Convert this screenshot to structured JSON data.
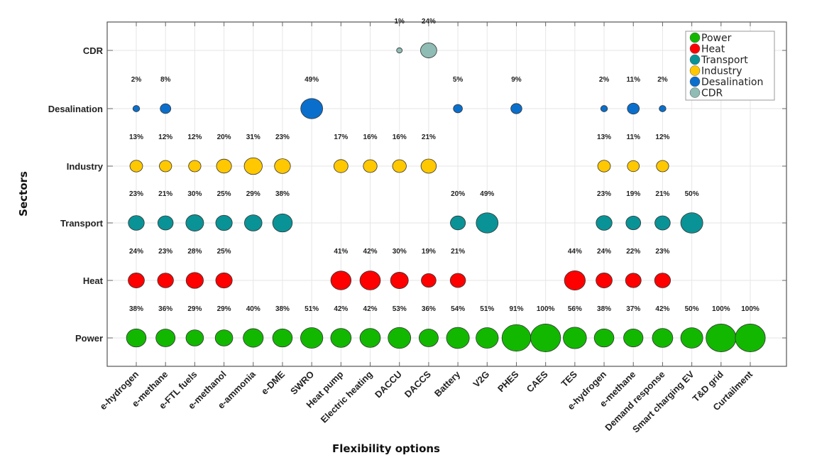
{
  "chart_data": {
    "type": "scatter",
    "subtype": "bubble",
    "title": "",
    "xlabel": "Flexibility options",
    "ylabel": "Sectors",
    "grid": true,
    "legend_position": "top-right",
    "categories": [
      "e-hydrogen",
      "e-methane",
      "e-FTL fuels",
      "e-methanol",
      "e-ammonia",
      "e-DME",
      "SWRO",
      "Heat pump",
      "Electric heating",
      "DACCU",
      "DACCS",
      "Battery",
      "V2G",
      "PHES",
      "CAES",
      "TES",
      "e-hydrogen",
      "e-methane",
      "Demand response",
      "Smart charging EV",
      "T&D grid",
      "Curtailment"
    ],
    "sectors": [
      "Power",
      "Heat",
      "Transport",
      "Industry",
      "Desalination",
      "CDR"
    ],
    "series": [
      {
        "name": "Power",
        "color": "#12b800",
        "values": [
          38,
          36,
          29,
          29,
          40,
          38,
          51,
          42,
          42,
          53,
          36,
          54,
          51,
          91,
          100,
          56,
          38,
          37,
          42,
          50,
          100,
          100
        ]
      },
      {
        "name": "Heat",
        "color": "#ff0000",
        "values": [
          24,
          23,
          28,
          25,
          null,
          null,
          null,
          41,
          42,
          30,
          19,
          21,
          null,
          null,
          null,
          44,
          24,
          22,
          23,
          null,
          null,
          null
        ]
      },
      {
        "name": "Transport",
        "color": "#0a9396",
        "values": [
          23,
          21,
          30,
          25,
          29,
          38,
          null,
          null,
          null,
          null,
          null,
          20,
          49,
          null,
          null,
          null,
          23,
          19,
          21,
          50,
          null,
          null
        ]
      },
      {
        "name": "Industry",
        "color": "#ffc800",
        "values": [
          13,
          12,
          12,
          20,
          31,
          23,
          null,
          17,
          16,
          16,
          21,
          null,
          null,
          null,
          null,
          null,
          13,
          11,
          12,
          null,
          null,
          null
        ]
      },
      {
        "name": "Desalination",
        "color": "#0a6fcc",
        "values": [
          2,
          8,
          null,
          null,
          null,
          null,
          49,
          null,
          null,
          null,
          null,
          5,
          null,
          9,
          null,
          null,
          2,
          11,
          2,
          null,
          null,
          null
        ]
      },
      {
        "name": "CDR",
        "color": "#8fbcb5",
        "values": [
          null,
          null,
          null,
          null,
          null,
          null,
          null,
          null,
          null,
          1,
          24,
          null,
          null,
          null,
          null,
          null,
          null,
          null,
          null,
          null,
          null,
          null
        ]
      }
    ],
    "value_unit": "%"
  }
}
